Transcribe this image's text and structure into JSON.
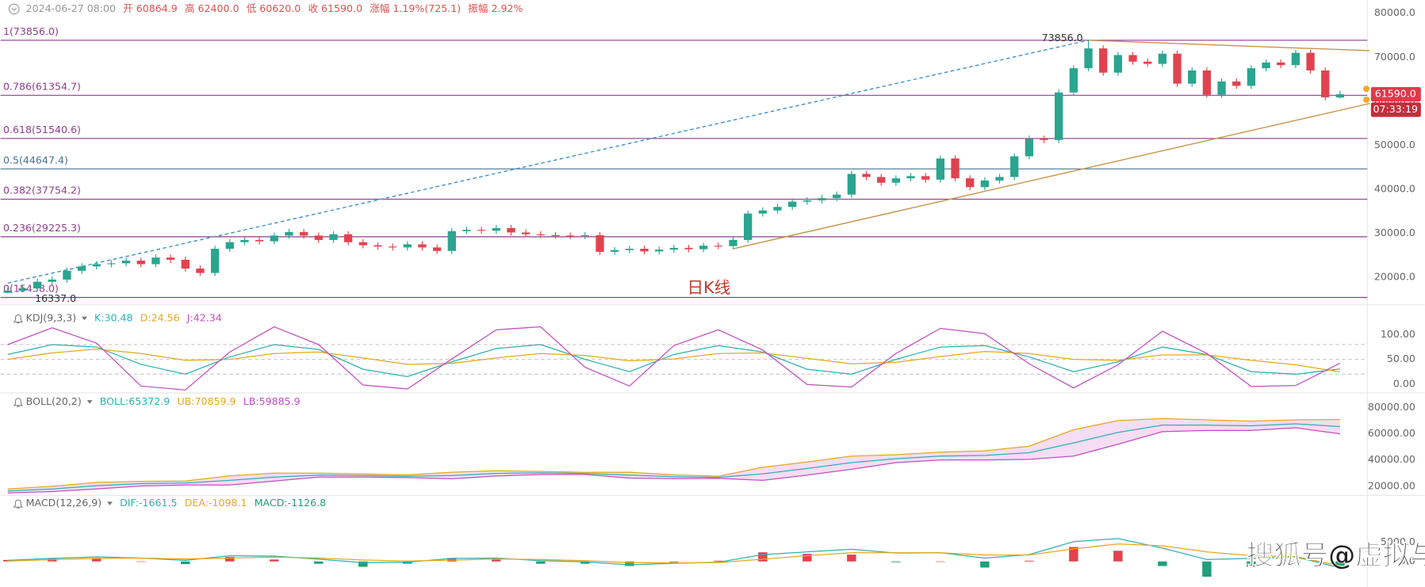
{
  "chart_data": [
    {
      "type": "candlestick",
      "info": [
        "2024-06-27 08:00",
        "开 60864.9",
        "高 62400.0",
        "低 60620.0",
        "收 61590.0",
        "涨幅 1.19%(725.1)",
        "振幅 2.92%"
      ],
      "open": [
        16500,
        17000,
        17500,
        19000,
        19500,
        21500,
        22500,
        23000,
        23200,
        23800,
        23000,
        24500,
        24000,
        22000,
        21000,
        26500,
        28000,
        28500,
        28200,
        29500,
        30300,
        29500,
        28500,
        29800,
        28000,
        27300,
        27000,
        26800,
        27500,
        26800,
        26000,
        30500,
        30800,
        30600,
        31200,
        30200,
        29800,
        29600,
        29500,
        29400,
        29600,
        25800,
        26200,
        26500,
        25900,
        26300,
        26700,
        26400,
        27200,
        27100,
        28500,
        34500,
        35200,
        36000,
        37200,
        37500,
        38000,
        38800,
        43500,
        42800,
        41500,
        42500,
        43000,
        42200,
        47000,
        42500,
        40500,
        42000,
        42800,
        47500,
        51500,
        51200,
        62000,
        67500,
        72000,
        66500,
        70500,
        69000,
        68500,
        70800,
        64000,
        67000,
        61500,
        64500,
        63500,
        67500,
        68800,
        68200,
        71000,
        67000,
        60864.9
      ],
      "high": [
        17700,
        18200,
        19700,
        20200,
        22200,
        23200,
        23700,
        23900,
        24500,
        24500,
        25200,
        25200,
        24700,
        22700,
        27200,
        28700,
        29200,
        29200,
        30200,
        31000,
        31000,
        30200,
        30500,
        30500,
        28700,
        28000,
        27700,
        28200,
        28200,
        27500,
        31200,
        31500,
        31500,
        31900,
        31900,
        30900,
        30500,
        30300,
        30200,
        30300,
        30300,
        26900,
        27200,
        27200,
        27000,
        27400,
        27400,
        27900,
        27900,
        29200,
        35200,
        35900,
        36700,
        37900,
        38200,
        38700,
        39500,
        44200,
        44200,
        43500,
        43200,
        43700,
        43700,
        47700,
        47700,
        43200,
        42700,
        43500,
        48200,
        52200,
        52200,
        62700,
        68200,
        73856,
        72700,
        71200,
        71200,
        69700,
        71500,
        71500,
        67700,
        67700,
        65200,
        65200,
        68200,
        69500,
        69500,
        71700,
        71700,
        67700,
        62400
      ],
      "low": [
        16337,
        16600,
        16800,
        18300,
        18800,
        20800,
        21800,
        22300,
        22500,
        22300,
        22300,
        23300,
        21300,
        20300,
        20300,
        25800,
        27300,
        27500,
        27500,
        28800,
        28800,
        27800,
        27800,
        27300,
        26600,
        26300,
        26100,
        26100,
        26100,
        25300,
        25300,
        29800,
        29900,
        29900,
        29500,
        29100,
        28900,
        28800,
        28700,
        28700,
        25100,
        25100,
        25500,
        25200,
        25200,
        25600,
        25700,
        25700,
        26400,
        26400,
        27800,
        33800,
        34500,
        35300,
        36500,
        36800,
        37300,
        38100,
        42100,
        40800,
        40800,
        41800,
        41500,
        41500,
        41800,
        39800,
        39800,
        41300,
        42100,
        46800,
        50500,
        50500,
        61300,
        66800,
        65800,
        65800,
        68300,
        67800,
        67800,
        63300,
        63300,
        60800,
        60800,
        62800,
        62800,
        66800,
        67500,
        67500,
        66300,
        60200,
        60620
      ],
      "close": [
        17000,
        17500,
        19000,
        19500,
        21500,
        22500,
        23000,
        23200,
        23800,
        23000,
        24500,
        24000,
        22000,
        21000,
        26500,
        28000,
        28500,
        28200,
        29500,
        30300,
        29500,
        28500,
        29800,
        28000,
        27300,
        27000,
        26800,
        27500,
        26800,
        26000,
        30500,
        30800,
        30600,
        31200,
        30200,
        29800,
        29600,
        29500,
        29400,
        29600,
        25800,
        26200,
        26500,
        25900,
        26300,
        26700,
        26400,
        27200,
        27100,
        28500,
        34500,
        35200,
        36000,
        37200,
        37500,
        38000,
        38800,
        43500,
        42800,
        41500,
        42500,
        43000,
        42200,
        47000,
        42500,
        40500,
        42000,
        42800,
        47500,
        51500,
        51200,
        62000,
        67500,
        72000,
        66500,
        70500,
        69000,
        68500,
        70800,
        64000,
        67000,
        61500,
        64500,
        63500,
        67500,
        68800,
        68200,
        71000,
        67000,
        60900,
        61590
      ],
      "up_color": "#2aa58f",
      "down_color": "#e0434f",
      "ylim": [
        15000,
        83000
      ],
      "yticks": [
        {
          "value": 20000,
          "label": "20000.0"
        },
        {
          "value": 30000,
          "label": "30000.0"
        },
        {
          "value": 40000,
          "label": "40000.0"
        },
        {
          "value": 50000,
          "label": "50000.0"
        },
        {
          "value": 60000,
          "label": "60000.0"
        },
        {
          "value": 70000,
          "label": "70000.0"
        },
        {
          "value": 80000,
          "label": "80000.0"
        }
      ],
      "levels": [
        {
          "label": "1(73856.0)",
          "value": 73856,
          "color": "#8e3e8e"
        },
        {
          "label": "0.786(61354.7)",
          "value": 61354.7,
          "color": "#8e3e8e"
        },
        {
          "label": "0.618(51540.6)",
          "value": 51540.6,
          "color": "#8e3e8e"
        },
        {
          "label": "0.5(44647.4)",
          "value": 44647.4,
          "color": "#46708f"
        },
        {
          "label": "0.382(37754.2)",
          "value": 37754.2,
          "color": "#8e3e8e"
        },
        {
          "label": "0.236(29225.3)",
          "value": 29225.3,
          "color": "#8e3e8e"
        },
        {
          "label": "0(15438.0)",
          "value": 15438,
          "color": "#8e3e8e"
        }
      ],
      "trendlines": [
        {
          "x": [
            73,
            92
          ],
          "y": [
            73856,
            71500
          ],
          "color": "#c8924a"
        },
        {
          "x": [
            49,
            92
          ],
          "y": [
            26500,
            59500
          ],
          "color": "#c8924a"
        },
        {
          "x": [
            0,
            73
          ],
          "y": [
            18700,
            73856
          ],
          "color": "#3b8fd0",
          "dashed": true
        }
      ],
      "annotations": [
        {
          "text": "73856.0",
          "x": 73,
          "y": 73856
        },
        {
          "text": "16337.0",
          "x": 0,
          "y": 16337
        }
      ],
      "label": "日K线",
      "price_tag": "61590.0",
      "countdown": "07:33:19",
      "watermark": "搜狐号@虚拟与现实交换"
    },
    {
      "type": "line",
      "title": "KDJ(9,3,3)",
      "x": [
        0,
        3,
        6,
        9,
        12,
        15,
        18,
        21,
        24,
        27,
        30,
        33,
        36,
        39,
        42,
        45,
        48,
        51,
        54,
        57,
        60,
        63,
        66,
        69,
        72,
        75,
        78,
        81,
        84,
        87,
        90
      ],
      "series": [
        {
          "label": "K:30.48",
          "color": "#2fb0b0",
          "values": [
            60,
            80,
            75,
            40,
            20,
            55,
            80,
            70,
            30,
            15,
            45,
            72,
            80,
            50,
            25,
            60,
            78,
            65,
            30,
            20,
            50,
            75,
            78,
            55,
            25,
            45,
            75,
            60,
            25,
            20,
            30.48
          ]
        },
        {
          "label": "D:24.56",
          "color": "#e5a81d",
          "values": [
            50,
            63,
            71,
            62,
            48,
            50,
            62,
            65,
            53,
            40,
            42,
            53,
            62,
            58,
            47,
            51,
            62,
            63,
            52,
            41,
            44,
            56,
            66,
            62,
            50,
            48,
            59,
            59,
            48,
            39,
            24.56
          ]
        },
        {
          "label": "J:42.34",
          "color": "#c24fc2",
          "values": [
            80,
            114,
            83,
            -4,
            -12,
            65,
            116,
            80,
            -2,
            -10,
            51,
            110,
            116,
            34,
            -4,
            78,
            110,
            69,
            -1,
            -6,
            62,
            113,
            102,
            41,
            -8,
            39,
            107,
            62,
            -5,
            -3,
            42.34
          ]
        }
      ],
      "guides": [
        20,
        50,
        80
      ],
      "ylim": [
        -16,
        144
      ],
      "yticks": [
        {
          "value": 0,
          "label": "0.00"
        },
        {
          "value": 50,
          "label": "50.00"
        },
        {
          "value": 100,
          "label": "100.00"
        }
      ]
    },
    {
      "type": "line",
      "title": "BOLL(20,2)",
      "x": [
        0,
        3,
        6,
        9,
        12,
        15,
        18,
        21,
        24,
        27,
        30,
        33,
        36,
        39,
        42,
        45,
        48,
        51,
        54,
        57,
        60,
        63,
        66,
        69,
        72,
        75,
        78,
        81,
        84,
        87,
        90
      ],
      "series": [
        {
          "label": "BOLL:65372.9",
          "color": "#2fb0b0",
          "values": [
            16500,
            18000,
            20500,
            22000,
            22500,
            24500,
            27000,
            28500,
            28200,
            27600,
            28200,
            29800,
            30200,
            29800,
            28500,
            27300,
            26800,
            29500,
            33500,
            38000,
            41000,
            43000,
            43500,
            45500,
            53000,
            61000,
            66500,
            66500,
            66000,
            67500,
            65372.9
          ]
        },
        {
          "label": "UB:70859.9",
          "color": "#e5a81d",
          "values": [
            18000,
            20000,
            23000,
            23800,
            24000,
            28000,
            30000,
            30000,
            29400,
            28600,
            30700,
            31800,
            31400,
            30600,
            30700,
            28800,
            27600,
            34500,
            38500,
            43000,
            44000,
            46000,
            47000,
            50500,
            63000,
            70000,
            71500,
            70500,
            69500,
            70500,
            70859.9
          ]
        },
        {
          "label": "LB:59885.9",
          "color": "#c24fc2",
          "values": [
            15000,
            16000,
            18000,
            20200,
            21000,
            21000,
            24000,
            27000,
            27000,
            26600,
            25700,
            27800,
            29000,
            29000,
            26300,
            25800,
            26000,
            24500,
            28500,
            33000,
            38000,
            40000,
            40000,
            40500,
            43000,
            52000,
            61500,
            62500,
            62500,
            64500,
            59885.9
          ]
        }
      ],
      "fill": "#f3d4f0",
      "ylim": [
        13800,
        87600
      ],
      "yticks": [
        {
          "value": 20000,
          "label": "20000.00"
        },
        {
          "value": 40000,
          "label": "40000.00"
        },
        {
          "value": 60000,
          "label": "60000.00"
        },
        {
          "value": 80000,
          "label": "80000.00"
        }
      ]
    },
    {
      "type": "macd",
      "title": "MACD(12,26,9)",
      "x": [
        0,
        3,
        6,
        9,
        12,
        15,
        18,
        21,
        24,
        27,
        30,
        33,
        36,
        39,
        42,
        45,
        48,
        51,
        54,
        57,
        60,
        63,
        66,
        69,
        72,
        75,
        78,
        81,
        84,
        87,
        90
      ],
      "series": [
        {
          "label": "DIF:-1661.5",
          "color": "#2fb0b0",
          "values": [
            300,
            800,
            1200,
            900,
            300,
            1500,
            1400,
            600,
            -300,
            -200,
            800,
            900,
            200,
            -100,
            -900,
            -500,
            -200,
            1800,
            2500,
            3200,
            2200,
            2300,
            900,
            1800,
            5200,
            6000,
            3500,
            500,
            800,
            1200,
            -1661.5
          ]
        },
        {
          "label": "DEA:-1098.1",
          "color": "#e5a81d",
          "values": [
            100,
            450,
            800,
            900,
            650,
            900,
            1150,
            900,
            400,
            100,
            350,
            650,
            500,
            200,
            -300,
            -400,
            -300,
            600,
            1500,
            2300,
            2300,
            2300,
            1700,
            1700,
            3300,
            4600,
            4100,
            2500,
            1500,
            1300,
            -1098.1
          ]
        },
        {
          "label": "MACD:-1126.8",
          "color": "#1fa07a",
          "up_color": "#e0434f",
          "down_color": "#1fa07a",
          "values": [
            400,
            700,
            800,
            0,
            -700,
            1200,
            500,
            -600,
            -1400,
            -600,
            900,
            500,
            -600,
            -600,
            -1200,
            -200,
            200,
            2400,
            2000,
            1800,
            -200,
            0,
            -1600,
            200,
            3800,
            2800,
            -1200,
            -4000,
            -1400,
            -200,
            -1126.8
          ]
        }
      ],
      "ylim": [
        -6700,
        14000
      ],
      "yticks": [
        {
          "value": 0,
          "label": "0.0"
        },
        {
          "value": 5000,
          "label": "5000.0"
        }
      ]
    }
  ]
}
